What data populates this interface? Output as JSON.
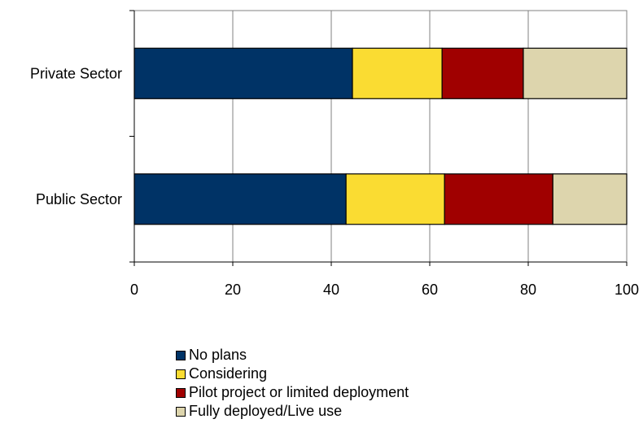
{
  "chart_data": {
    "type": "bar",
    "orientation": "horizontal",
    "stacked": true,
    "categories": [
      "Private Sector",
      "Public Sector"
    ],
    "series": [
      {
        "name": "No plans",
        "color": "#003366",
        "values": [
          44.3,
          43.0
        ]
      },
      {
        "name": "Considering",
        "color": "#FADC32",
        "values": [
          18.2,
          20.0
        ]
      },
      {
        "name": "Pilot project or limited deployment",
        "color": "#A00000",
        "values": [
          16.5,
          22.0
        ]
      },
      {
        "name": "Fully deployed/Live use",
        "color": "#DDD5AD",
        "values": [
          21.0,
          15.0
        ]
      }
    ],
    "xlim": [
      0,
      100
    ],
    "xticks": [
      "0",
      "20",
      "40",
      "60",
      "80",
      "100"
    ],
    "grid": true,
    "legend_position": "bottom"
  }
}
